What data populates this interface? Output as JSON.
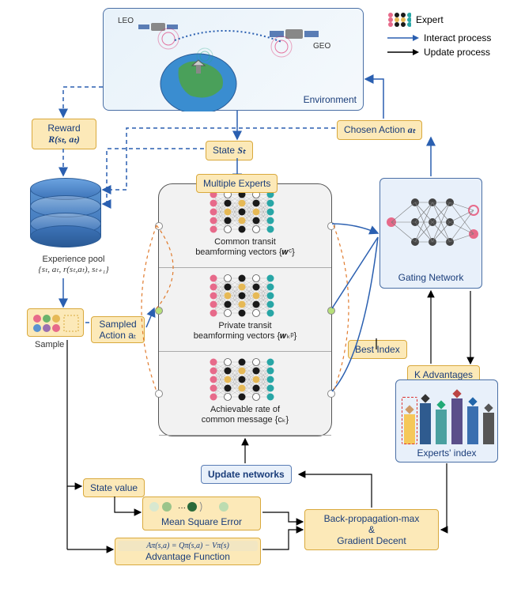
{
  "legend": {
    "expert": "Expert",
    "interact": "Interact process",
    "update": "Update process",
    "interact_color": "#2a5fb0",
    "update_color": "#000000"
  },
  "environment": {
    "label": "Environment",
    "leo": "LEO",
    "geo": "GEO",
    "bg": "#eaf3fb",
    "border": "#4a6fa5"
  },
  "reward": {
    "title": "Reward",
    "math": "R(sₜ, aₜ)"
  },
  "state": {
    "title": "State",
    "math": "Sₜ"
  },
  "chosen_action": {
    "title": "Chosen Action",
    "math": "aₜ"
  },
  "multiple_experts": "Multiple Experts",
  "experts": {
    "row1": {
      "l1": "Common transit",
      "l2": "beamforming vectors {𝒘ᶜ}"
    },
    "row2": {
      "l1": "Private transit",
      "l2": "beamforming vectors {𝒘ₖᵖ}"
    },
    "row3": {
      "l1": "Achievable rate of",
      "l2": "common message {cₖ}"
    },
    "colors": {
      "pink": "#e76a8a",
      "gold": "#e6b956",
      "teal": "#28a6a6",
      "black": "#1a1a1a",
      "white": "#ffffff"
    }
  },
  "experience_pool": {
    "l1": "Experience pool",
    "l2": "{sₜ, aₜ, r(sₜ,aₜ), sₜ₊₁}"
  },
  "sample": "Sample",
  "sampled_action": {
    "title": "Sampled",
    "l2": "Action aₜ"
  },
  "gating": "Gating Network",
  "best_index": "Best Index",
  "k_advantages": "K Advantages",
  "experts_index": "Experts' index",
  "state_value": "State value",
  "mse": "Mean Square Error",
  "advantage_fn": {
    "title": "Advantage Function",
    "formula": "Aπ(s,a) = Qπ(s,a) − Vπ(s)"
  },
  "bp": {
    "l1": "Back-propagation-max",
    "l2": "&",
    "l3": "Gradient Decent"
  },
  "update_networks": "Update networks",
  "kbar": {
    "colors": [
      "#f5c85a",
      "#2f5b8f",
      "#4aa0a0",
      "#5a4f8a",
      "#3a6fb0",
      "#555"
    ],
    "heights": [
      38,
      52,
      44,
      58,
      48,
      40
    ],
    "diamond_colors": [
      "#c96",
      "#333",
      "#2a7",
      "#b44",
      "#26a",
      "#555"
    ]
  }
}
